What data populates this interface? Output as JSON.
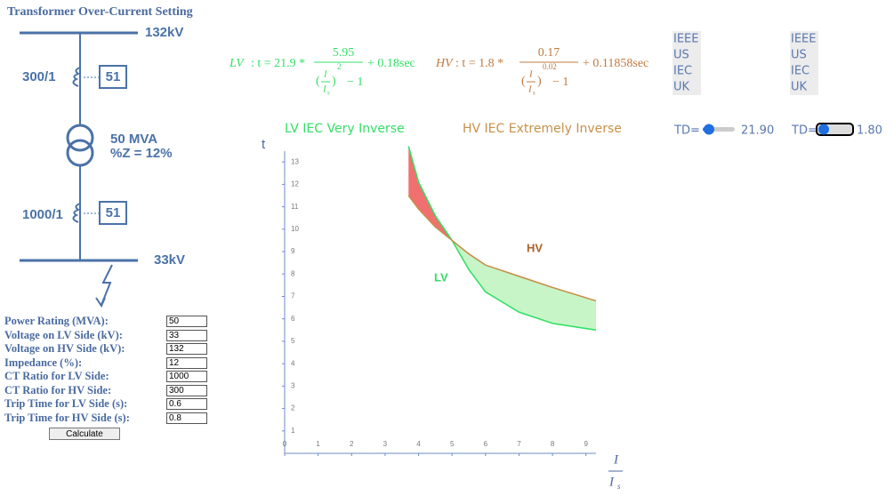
{
  "header": {
    "title": "Transformer Over-Current Setting"
  },
  "diagram": {
    "hv_bus": "132kV",
    "hv_ct": "300/1",
    "hv_relay": "51",
    "rating": "50 MVA",
    "impedance": "%Z = 12%",
    "lv_ct": "1000/1",
    "lv_relay": "51",
    "lv_bus": "33kV"
  },
  "form": {
    "fields": [
      {
        "label": "Power Rating (MVA):",
        "value": "50"
      },
      {
        "label": "Voltage on LV Side (kV):",
        "value": "33"
      },
      {
        "label": "Voltage on HV Side (kV):",
        "value": "132"
      },
      {
        "label": "Impedance (%):",
        "value": "12"
      },
      {
        "label": "CT Ratio for LV Side:",
        "value": "1000"
      },
      {
        "label": "CT Ratio for HV Side:",
        "value": "300"
      },
      {
        "label": "Trip Time for LV Side (s):",
        "value": "0.6"
      },
      {
        "label": "Trip Time for HV Side (s):",
        "value": "0.8"
      }
    ],
    "button": "Calculate"
  },
  "equations": [
    {
      "side": "LV",
      "lhs": ": t = 21.9 *",
      "numerator": "5.95",
      "open": "(",
      "i": "I",
      "is": "I",
      "sub": "s",
      "close": ")",
      "exponent": "2",
      "minus": "− 1",
      "tail": "+ 0.18sec"
    },
    {
      "side": "HV",
      "lhs": ": t = 1.8 *",
      "numerator": "0.17",
      "open": "(",
      "i": "I",
      "is": "I",
      "sub": "s",
      "close": ")",
      "exponent": "0.02",
      "minus": "− 1",
      "tail": "+ 0.11858sec"
    }
  ],
  "curve_options": [
    [
      "IEEE",
      "US",
      "IEC",
      "UK"
    ],
    [
      "IEEE",
      "US",
      "IEC",
      "UK"
    ]
  ],
  "sliders": [
    {
      "label": "TD=",
      "value": "21.90"
    },
    {
      "label": "TD=",
      "value": "1.80"
    }
  ],
  "chart_data": {
    "type": "line",
    "y_label": "t",
    "x_label": {
      "numerator": "I",
      "denominator": "I",
      "sub": "s"
    },
    "x": [
      3.7,
      4,
      4.5,
      5,
      5.5,
      6,
      7,
      8,
      9.3
    ],
    "series": [
      {
        "name": "LV IEC Very Inverse",
        "color": "#33e066",
        "values": [
          13.7,
          12.1,
          10.6,
          9.5,
          8.2,
          7.2,
          6.3,
          5.8,
          5.5
        ]
      },
      {
        "name": "HV IEC Extremely Inverse",
        "color": "#c8904a",
        "values": [
          11.5,
          10.9,
          10.1,
          9.5,
          8.9,
          8.4,
          7.9,
          7.4,
          6.8
        ]
      }
    ],
    "annotations": [
      "HV",
      "LV"
    ],
    "xlim": [
      0,
      9.3
    ],
    "ylim": [
      0,
      14
    ],
    "xticks": [
      0,
      1,
      2,
      3,
      4,
      5,
      6,
      7,
      8,
      9
    ],
    "yticks": [
      1,
      2,
      3,
      4,
      5,
      6,
      7,
      8,
      9,
      10,
      11,
      12,
      13
    ]
  }
}
